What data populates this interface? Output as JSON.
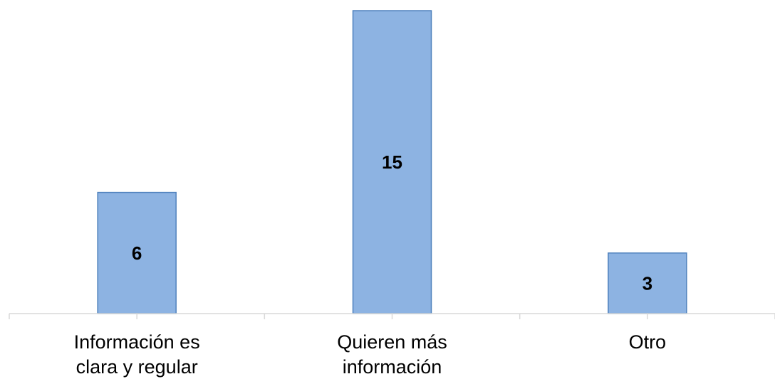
{
  "chart_data": {
    "type": "bar",
    "categories": [
      [
        "Información es",
        "clara y regular"
      ],
      [
        "Quieren más",
        "información"
      ],
      [
        "Otro"
      ]
    ],
    "values": [
      6,
      15,
      3
    ],
    "data_labels": [
      "6",
      "15",
      "3"
    ],
    "ylim": [
      0,
      15
    ],
    "grid": false,
    "legend": "none",
    "colors": {
      "bar_fill": "#8db3e2",
      "bar_stroke": "#4f81bd",
      "axis": "#d9d9d9",
      "text": "#000000"
    }
  }
}
